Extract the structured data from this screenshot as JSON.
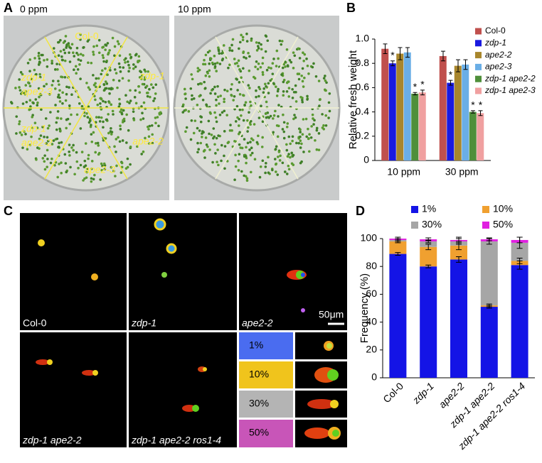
{
  "panels": {
    "A": {
      "label": "A",
      "conditions": [
        "0 ppm",
        "10 ppm"
      ],
      "plate_labels": [
        [
          "Col-0"
        ],
        [
          "zdp-1"
        ],
        [
          "zdp-1",
          "ape2-3"
        ],
        [
          "zdp-1",
          "ape2-2"
        ],
        [
          "ape2-2"
        ],
        [
          "ape2-3"
        ]
      ]
    },
    "B": {
      "label": "B"
    },
    "C": {
      "label": "C",
      "images": [
        "Col-0",
        "zdp-1",
        "ape2-2",
        "zdp-1 ape2-2",
        "zdp-1 ape2-2 ros1-4"
      ],
      "scale_bar": "50μm",
      "classes": [
        "1%",
        "10%",
        "30%",
        "50%"
      ]
    },
    "D": {
      "label": "D"
    }
  },
  "chart_data": [
    {
      "type": "bar",
      "ylabel": "Relative fresh weight",
      "categories": [
        "10 ppm",
        "30 ppm"
      ],
      "series": [
        {
          "name": "Col-0",
          "color": "#c0504d",
          "values": [
            0.92,
            0.86
          ],
          "errors": [
            0.04,
            0.04
          ]
        },
        {
          "name": "zdp-1",
          "color": "#1a1ae0",
          "values": [
            0.8,
            0.64
          ],
          "errors": [
            0.02,
            0.02
          ],
          "marker_text": "*"
        },
        {
          "name": "ape2-2",
          "color": "#a8862c",
          "values": [
            0.88,
            0.78
          ],
          "errors": [
            0.05,
            0.05
          ]
        },
        {
          "name": "ape2-3",
          "color": "#6aaee6",
          "values": [
            0.89,
            0.79
          ],
          "errors": [
            0.04,
            0.04
          ]
        },
        {
          "name": "zdp-1 ape2-2",
          "color": "#4f8f3a",
          "values": [
            0.55,
            0.4
          ],
          "errors": [
            0.01,
            0.01
          ],
          "marker_text": "*"
        },
        {
          "name": "zdp-1 ape2-3",
          "color": "#f0a0a0",
          "values": [
            0.56,
            0.39
          ],
          "errors": [
            0.02,
            0.02
          ],
          "marker_text": "*"
        }
      ],
      "ylim": [
        0,
        1
      ],
      "yticks": [
        0,
        0.2,
        0.4,
        0.6,
        0.8,
        {
          "value": 1,
          "label": "1.0"
        }
      ],
      "grid": false
    },
    {
      "type": "stacked_bar",
      "ylabel": "Frequency (%)",
      "categories": [
        "Col-0",
        "zdp-1",
        "ape2-2",
        "zdp-1 ape2-2",
        "zdp-1 ape2-2 ros1-4"
      ],
      "series": [
        {
          "name": "1%",
          "color": "#1414e6",
          "values": [
            89,
            80,
            85,
            51,
            81
          ],
          "errors": [
            1,
            1,
            2,
            1,
            3
          ]
        },
        {
          "name": "10%",
          "color": "#f0a030",
          "values": [
            9,
            14,
            10,
            1,
            3
          ],
          "errors": [
            1,
            2,
            3,
            1,
            2
          ]
        },
        {
          "name": "30%",
          "color": "#a6a6a6",
          "values": [
            1,
            4,
            3,
            46,
            13
          ],
          "errors": [
            1,
            1,
            2,
            2,
            4
          ]
        },
        {
          "name": "50%",
          "color": "#e020e0",
          "values": [
            1,
            1.5,
            1,
            1.5,
            2
          ],
          "errors": [
            1,
            1,
            2,
            1,
            2
          ]
        }
      ],
      "ylim": [
        0,
        100
      ],
      "yticks": [
        0,
        20,
        40,
        60,
        80,
        100
      ],
      "grid": false
    }
  ]
}
